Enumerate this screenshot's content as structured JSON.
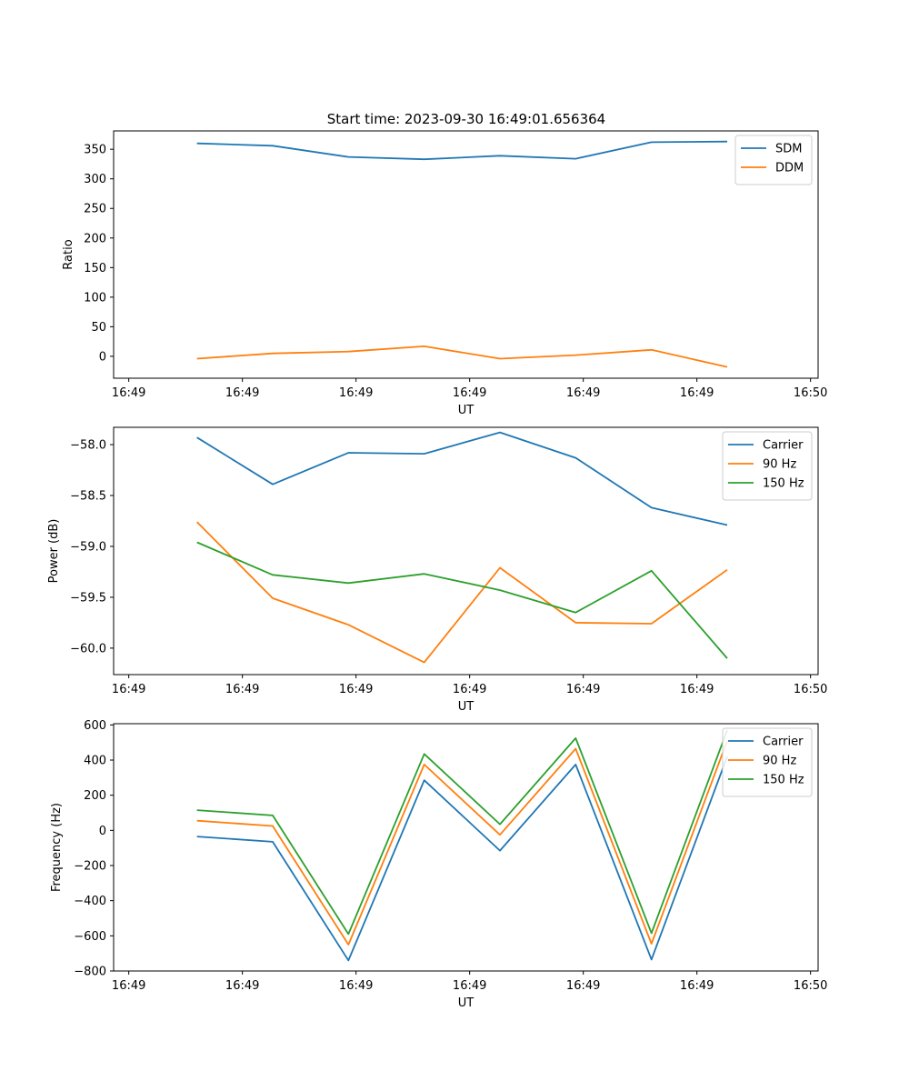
{
  "figure_title": "Start time: 2023-09-30 16:49:01.656364",
  "colors": {
    "blue": "#1f77b4",
    "orange": "#ff7f0e",
    "green": "#2ca02c"
  },
  "chart_data": [
    {
      "type": "line",
      "title": "Start time: 2023-09-30 16:49:01.656364",
      "xlabel": "UT",
      "ylabel": "Ratio",
      "x": [
        1.1,
        2.1,
        3.1,
        4.1,
        5.1,
        6.1,
        7.1,
        8.1
      ],
      "xlim": [
        0,
        9.3
      ],
      "xticks": [
        0.2,
        1.7,
        3.2,
        4.7,
        6.2,
        7.7,
        9.2
      ],
      "xtick_labels": [
        "16:49",
        "16:49",
        "16:49",
        "16:49",
        "16:49",
        "16:49",
        "16:50"
      ],
      "ylim": [
        -37,
        381
      ],
      "yticks": [
        0,
        50,
        100,
        150,
        200,
        250,
        300,
        350
      ],
      "ytick_labels": [
        "0",
        "50",
        "100",
        "150",
        "200",
        "250",
        "300",
        "350"
      ],
      "legend_position": "top-right",
      "series": [
        {
          "name": "SDM",
          "color": "#1f77b4",
          "values": [
            360,
            356,
            337,
            333,
            339,
            334,
            362,
            363
          ]
        },
        {
          "name": "DDM",
          "color": "#ff7f0e",
          "values": [
            -4,
            5,
            8,
            17,
            -4,
            2,
            11,
            -18
          ]
        }
      ]
    },
    {
      "type": "line",
      "xlabel": "UT",
      "ylabel": "Power (dB)",
      "x": [
        1.1,
        2.1,
        3.1,
        4.1,
        5.1,
        6.1,
        7.1,
        8.1
      ],
      "xlim": [
        0,
        9.3
      ],
      "xticks": [
        0.2,
        1.7,
        3.2,
        4.7,
        6.2,
        7.7,
        9.2
      ],
      "xtick_labels": [
        "16:49",
        "16:49",
        "16:49",
        "16:49",
        "16:49",
        "16:49",
        "16:50"
      ],
      "ylim": [
        -60.26,
        -57.83
      ],
      "yticks": [
        -60.0,
        -59.5,
        -59.0,
        -58.5,
        -58.0
      ],
      "ytick_labels": [
        "−60.0",
        "−59.5",
        "−59.0",
        "−58.5",
        "−58.0"
      ],
      "legend_position": "top-right",
      "series": [
        {
          "name": "Carrier",
          "color": "#1f77b4",
          "values": [
            -57.93,
            -58.39,
            -58.08,
            -58.09,
            -57.88,
            -58.13,
            -58.62,
            -58.79
          ]
        },
        {
          "name": "90 Hz",
          "color": "#ff7f0e",
          "values": [
            -58.76,
            -59.51,
            -59.77,
            -60.14,
            -59.21,
            -59.75,
            -59.76,
            -59.23
          ]
        },
        {
          "name": "150 Hz",
          "color": "#2ca02c",
          "values": [
            -58.96,
            -59.28,
            -59.36,
            -59.27,
            -59.43,
            -59.65,
            -59.24,
            -60.1
          ]
        }
      ]
    },
    {
      "type": "line",
      "xlabel": "UT",
      "ylabel": "Frequency (Hz)",
      "x": [
        1.1,
        2.1,
        3.1,
        4.1,
        5.1,
        6.1,
        7.1,
        8.1
      ],
      "xlim": [
        0,
        9.3
      ],
      "xticks": [
        0.2,
        1.7,
        3.2,
        4.7,
        6.2,
        7.7,
        9.2
      ],
      "xtick_labels": [
        "16:49",
        "16:49",
        "16:49",
        "16:49",
        "16:49",
        "16:49",
        "16:50"
      ],
      "ylim": [
        -800,
        607
      ],
      "yticks": [
        -800,
        -600,
        -400,
        -200,
        0,
        200,
        400,
        600
      ],
      "ytick_labels": [
        "−800",
        "−600",
        "−400",
        "−200",
        "0",
        "200",
        "400",
        "600"
      ],
      "legend_position": "top-right",
      "series": [
        {
          "name": "Carrier",
          "color": "#1f77b4",
          "values": [
            -35,
            -65,
            -740,
            285,
            -115,
            375,
            -735,
            420
          ]
        },
        {
          "name": "90 Hz",
          "color": "#ff7f0e",
          "values": [
            55,
            25,
            -650,
            375,
            -25,
            465,
            -645,
            510
          ]
        },
        {
          "name": "150 Hz",
          "color": "#2ca02c",
          "values": [
            115,
            85,
            -590,
            435,
            35,
            525,
            -585,
            570
          ]
        }
      ]
    }
  ]
}
